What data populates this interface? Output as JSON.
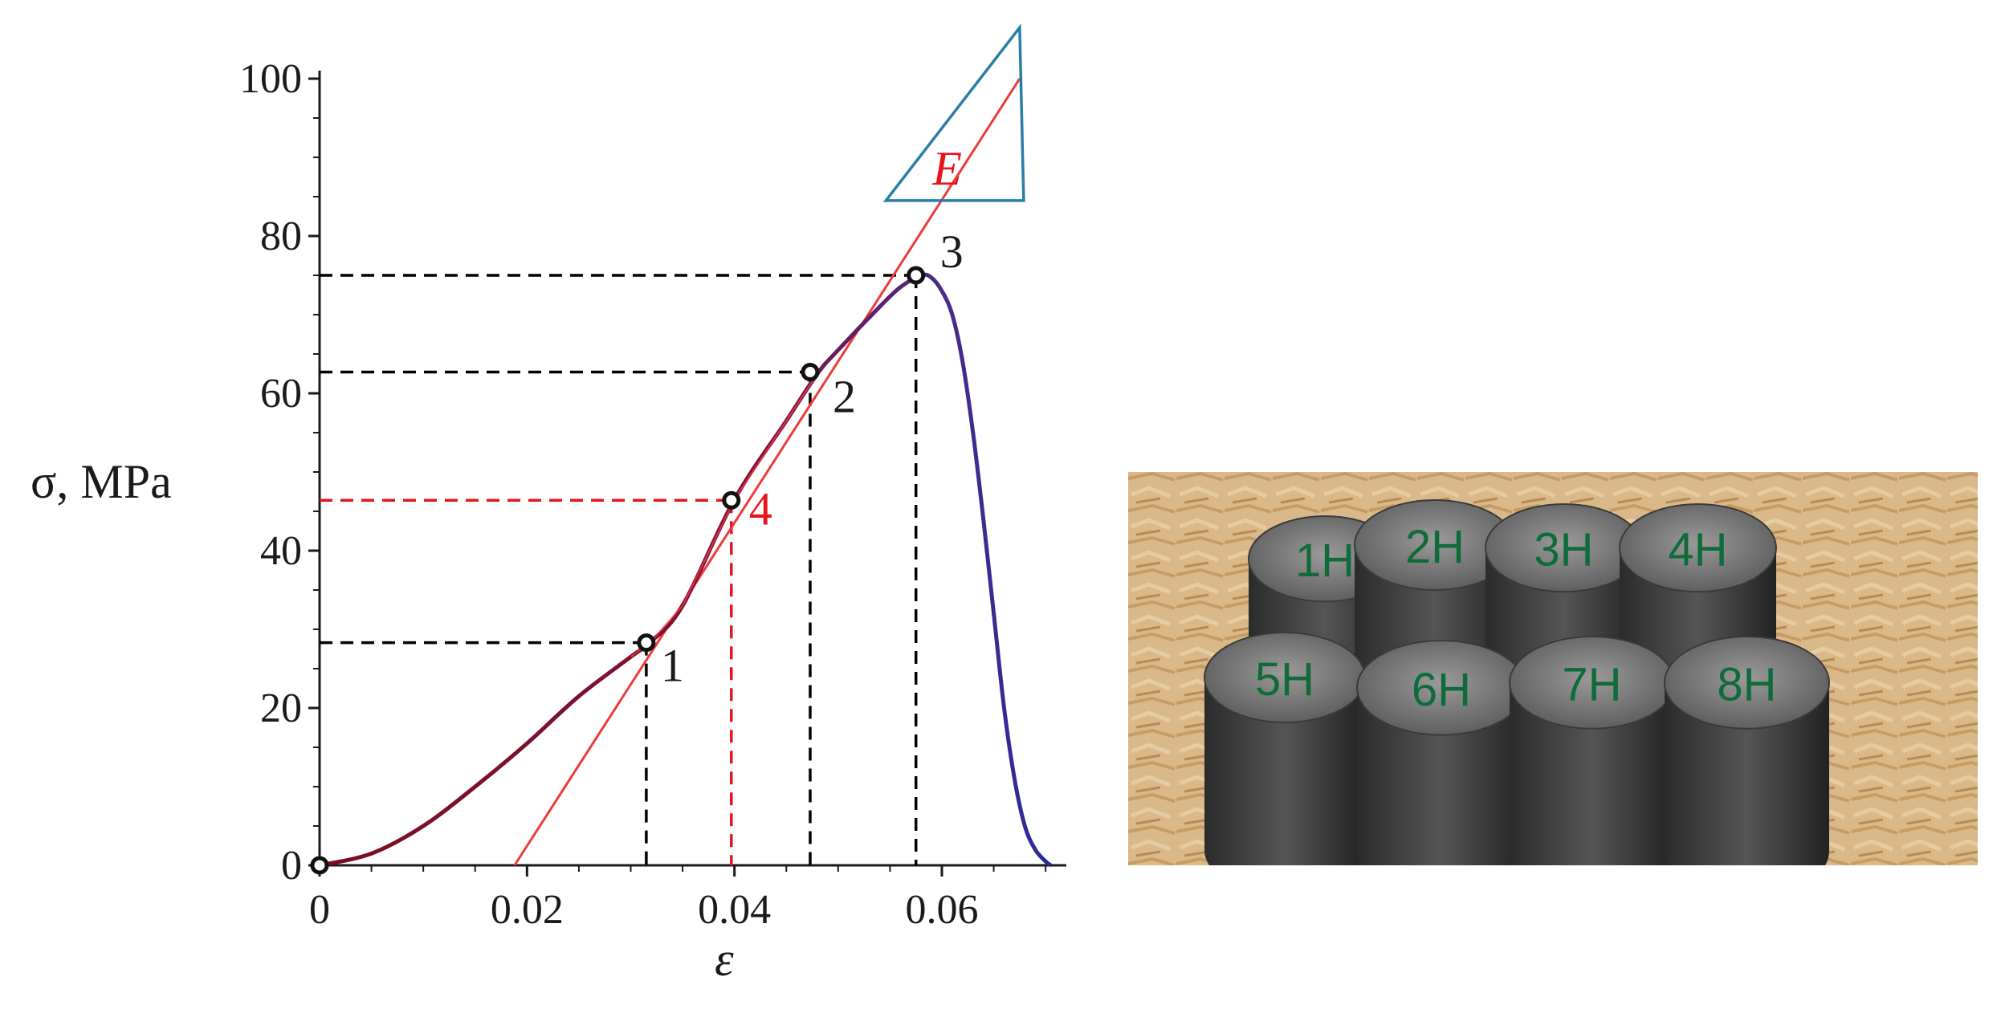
{
  "chart_data": {
    "type": "line",
    "title": "",
    "xlabel": "ε",
    "ylabel": "σ, MPa",
    "xlim": [
      0,
      0.072
    ],
    "ylim": [
      0,
      100
    ],
    "x_ticks": [
      "0",
      "0.02",
      "0.04",
      "0.06"
    ],
    "y_ticks": [
      "0",
      "20",
      "40",
      "60",
      "80",
      "100"
    ],
    "grid": false,
    "series": [
      {
        "style": "stress-strain curve (solid, dark red to blue)",
        "x": [
          0,
          0.005,
          0.01,
          0.015,
          0.02,
          0.025,
          0.03,
          0.032,
          0.035,
          0.04,
          0.045,
          0.048,
          0.05,
          0.054,
          0.056,
          0.058,
          0.059,
          0.06,
          0.061,
          0.062,
          0.063,
          0.064,
          0.065,
          0.066,
          0.067,
          0.068,
          0.069,
          0.07,
          0.0705
        ],
        "y": [
          0,
          1.5,
          5,
          10,
          15.5,
          21.5,
          26.5,
          28.5,
          33,
          46.5,
          56.5,
          62.5,
          65.5,
          71,
          73.5,
          75,
          74.7,
          73,
          70,
          64,
          55,
          44,
          32,
          20,
          11,
          5,
          2,
          0.5,
          0
        ]
      },
      {
        "style": "tangent line E (solid red)",
        "x": [
          0.0188,
          0.0675
        ],
        "y": [
          0,
          100
        ]
      }
    ],
    "points": [
      {
        "label": "0",
        "x": 0,
        "y": 0
      },
      {
        "label": "1",
        "x": 0.0315,
        "y": 28.3
      },
      {
        "label": "4",
        "x": 0.0397,
        "y": 46.4
      },
      {
        "label": "2",
        "x": 0.0473,
        "y": 62.7
      },
      {
        "label": "3",
        "x": 0.0575,
        "y": 75
      }
    ],
    "guide_lines": [
      {
        "point": "1",
        "x": 0.0315,
        "y": 28.3,
        "color": "#000000"
      },
      {
        "point": "4",
        "x": 0.0397,
        "y": 46.4,
        "color": "#e8141b"
      },
      {
        "point": "2",
        "x": 0.0473,
        "y": 62.7,
        "color": "#000000"
      },
      {
        "point": "3",
        "x": 0.0575,
        "y": 75,
        "color": "#000000"
      }
    ],
    "triangle_label": "E"
  },
  "colors": {
    "curve_start": "#7a0f1f",
    "curve_end": "#2a2a9a",
    "tangent": "#ef3a3a",
    "highlight": "#e8141b",
    "triangle": "#2a7ea6",
    "axis": "#1a1a1a"
  },
  "photo": {
    "description_icon": "specimens-photo",
    "specimen_labels": [
      "1H",
      "2H",
      "3H",
      "4H",
      "5H",
      "6H",
      "7H",
      "8H"
    ]
  }
}
